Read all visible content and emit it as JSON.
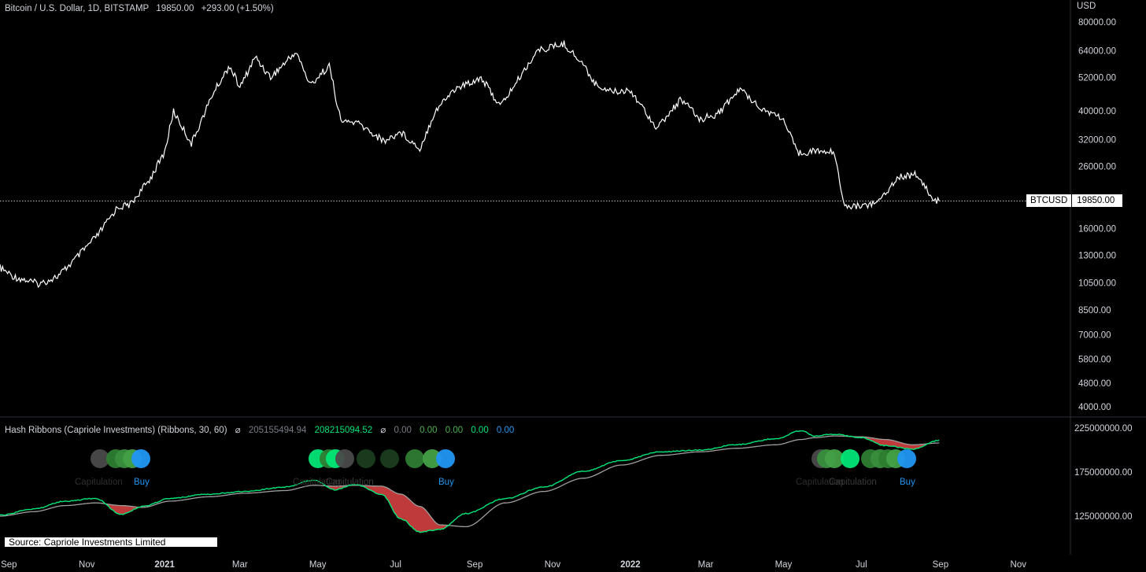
{
  "header": {
    "symbol": "Bitcoin / U.S. Dollar, 1D, BITSTAMP",
    "price": "19850.00",
    "change": "+293.00 (+1.50%)"
  },
  "price_axis_unit": "USD",
  "ticker_tag": {
    "symbol": "BTCUSD",
    "value": "19850.00"
  },
  "indicator": {
    "title": "Hash Ribbons (Capriole Investments) (Ribbons, 30, 60)",
    "values": [
      "205155494.94",
      "208215094.52",
      "0.00",
      "0.00",
      "0.00",
      "0.00",
      "0.00"
    ],
    "value_colors": [
      "#787b86",
      "#00e676",
      "#787b86",
      "#4caf50",
      "#4caf50",
      "#00e676",
      "#2196f3"
    ],
    "y_ticks": [
      "225000000.00",
      "175000000.00",
      "125000000.00"
    ]
  },
  "source_note": "Source: Capriole Investments Limited",
  "colors": {
    "price_line": "#ffffff",
    "fast_ma": "#00e676",
    "slow_ma": "#9e9e9e",
    "capitulation_fill": "#e04545",
    "buy": "#2196f3",
    "background": "#000000"
  },
  "chart_data": {
    "type": "line",
    "title": "Bitcoin / U.S. Dollar, 1D, BITSTAMP",
    "scale": "log",
    "ylim": [
      4000,
      80000
    ],
    "x_tick_labels": [
      "Sep",
      "Nov",
      "2021",
      "Mar",
      "May",
      "Jul",
      "Sep",
      "Nov",
      "2022",
      "Mar",
      "May",
      "Jul",
      "Sep",
      "Nov"
    ],
    "y_tick_labels": [
      "80000.00",
      "64000.00",
      "52000.00",
      "40000.00",
      "32000.00",
      "26000.00",
      "19850.00",
      "16000.00",
      "13000.00",
      "10500.00",
      "8500.00",
      "7000.00",
      "5800.00",
      "4800.00",
      "4000.00"
    ],
    "series": [
      {
        "name": "BTCUSD",
        "x": [
          "2020-08-25",
          "2020-09-05",
          "2020-09-25",
          "2020-10-10",
          "2020-10-25",
          "2020-11-10",
          "2020-11-25",
          "2020-12-05",
          "2020-12-20",
          "2021-01-01",
          "2021-01-08",
          "2021-01-22",
          "2021-02-08",
          "2021-02-21",
          "2021-03-01",
          "2021-03-13",
          "2021-03-25",
          "2021-04-14",
          "2021-04-25",
          "2021-05-10",
          "2021-05-19",
          "2021-06-01",
          "2021-06-22",
          "2021-07-05",
          "2021-07-20",
          "2021-08-01",
          "2021-08-15",
          "2021-09-06",
          "2021-09-21",
          "2021-10-05",
          "2021-10-20",
          "2021-11-10",
          "2021-11-25",
          "2021-12-05",
          "2021-12-20",
          "2022-01-01",
          "2022-01-22",
          "2022-02-10",
          "2022-02-24",
          "2022-03-10",
          "2022-03-28",
          "2022-04-15",
          "2022-04-30",
          "2022-05-12",
          "2022-05-25",
          "2022-06-10",
          "2022-06-18",
          "2022-07-01",
          "2022-07-13",
          "2022-07-30",
          "2022-08-14",
          "2022-08-26",
          "2022-08-31"
        ],
        "values": [
          11800,
          11000,
          10400,
          11100,
          12900,
          15300,
          18900,
          19300,
          23400,
          29000,
          40000,
          31000,
          46000,
          57000,
          48000,
          61000,
          52000,
          63500,
          49000,
          57000,
          37000,
          36500,
          31600,
          34000,
          29800,
          40000,
          47000,
          52000,
          41500,
          51000,
          64000,
          67500,
          57500,
          49000,
          46500,
          47200,
          35000,
          44000,
          37500,
          39000,
          47500,
          40500,
          38000,
          28900,
          29300,
          29000,
          18900,
          19200,
          19500,
          24000,
          24400,
          20000,
          19850
        ]
      }
    ]
  },
  "hash_ribbons_data": {
    "type": "line",
    "ylim": [
      100000000,
      235000000
    ],
    "series": [
      {
        "name": "fast",
        "x": [
          "2020-08-25",
          "2020-09-20",
          "2020-10-15",
          "2020-11-08",
          "2020-11-28",
          "2020-12-15",
          "2021-01-05",
          "2021-02-05",
          "2021-03-05",
          "2021-04-05",
          "2021-04-28",
          "2021-05-14",
          "2021-05-30",
          "2021-06-20",
          "2021-07-05",
          "2021-07-20",
          "2021-08-05",
          "2021-08-25",
          "2021-09-25",
          "2021-10-25",
          "2021-11-25",
          "2021-12-25",
          "2022-01-25",
          "2022-02-25",
          "2022-03-25",
          "2022-04-25",
          "2022-05-15",
          "2022-05-25",
          "2022-06-10",
          "2022-07-01",
          "2022-07-20",
          "2022-08-10",
          "2022-08-31"
        ],
        "values": [
          126000000,
          133000000,
          142000000,
          145000000,
          127000000,
          136000000,
          145000000,
          150000000,
          153000000,
          158000000,
          166000000,
          155000000,
          161000000,
          150000000,
          122000000,
          107000000,
          110000000,
          128000000,
          145000000,
          158000000,
          176000000,
          188000000,
          198000000,
          200000000,
          206000000,
          213000000,
          222000000,
          216000000,
          218000000,
          214000000,
          205000000,
          201000000,
          211000000
        ]
      },
      {
        "name": "slow",
        "x": [
          "2020-08-25",
          "2020-09-20",
          "2020-10-15",
          "2020-11-08",
          "2020-11-28",
          "2020-12-15",
          "2021-01-05",
          "2021-02-05",
          "2021-03-05",
          "2021-04-05",
          "2021-04-28",
          "2021-05-14",
          "2021-05-30",
          "2021-06-20",
          "2021-07-05",
          "2021-07-20",
          "2021-08-05",
          "2021-08-25",
          "2021-09-25",
          "2021-10-25",
          "2021-11-25",
          "2021-12-25",
          "2022-01-25",
          "2022-02-25",
          "2022-03-25",
          "2022-04-25",
          "2022-05-15",
          "2022-05-25",
          "2022-06-10",
          "2022-07-01",
          "2022-07-20",
          "2022-08-10",
          "2022-08-31"
        ],
        "values": [
          125000000,
          130000000,
          137000000,
          140000000,
          137000000,
          135000000,
          142000000,
          147000000,
          151000000,
          154000000,
          160000000,
          159000000,
          160000000,
          159000000,
          150000000,
          136000000,
          115000000,
          113000000,
          140000000,
          153000000,
          168000000,
          183000000,
          194000000,
          198000000,
          202000000,
          206000000,
          212000000,
          214000000,
          216000000,
          215000000,
          212000000,
          206000000,
          208000000
        ]
      }
    ]
  },
  "signal_groups": [
    {
      "label_left": "Capitulation",
      "label_right": "Buy",
      "circles": [
        {
          "color": "#4a4a4a"
        },
        {
          "color": "#2e7d32"
        },
        {
          "color": "#388e3c"
        },
        {
          "color": "#43a047"
        },
        {
          "color": "#2196f3"
        }
      ]
    },
    {
      "label_left": "Capitulation",
      "label_overlay": "Capitulation",
      "label_right": "Buy",
      "circles": [
        {
          "color": "#00e676"
        },
        {
          "color": "#2e7d32"
        },
        {
          "color": "#00e676"
        },
        {
          "color": "#4a4a4a"
        },
        {
          "color": "#1b3d1f"
        },
        {
          "color": "#1b3d1f"
        },
        {
          "color": "#2e7d32"
        },
        {
          "color": "#43a047"
        },
        {
          "color": "#2196f3"
        }
      ]
    },
    {
      "label_left": "Capitulation",
      "label_overlay": "Capitulation",
      "label_right": "Buy",
      "circles": [
        {
          "color": "#4a4a4a"
        },
        {
          "color": "#388e3c"
        },
        {
          "color": "#43a047"
        },
        {
          "color": "#00e676"
        },
        {
          "color": "#2e7d32"
        },
        {
          "color": "#388e3c"
        },
        {
          "color": "#2e7d32"
        },
        {
          "color": "#43a047"
        },
        {
          "color": "#2196f3"
        }
      ]
    }
  ]
}
